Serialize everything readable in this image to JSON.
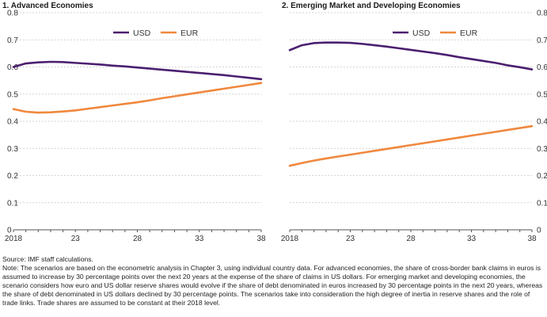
{
  "chart_data": [
    {
      "type": "line",
      "title": "1. Advanced Economies",
      "x": [
        2018,
        2019,
        2020,
        2021,
        2022,
        2023,
        2024,
        2025,
        2026,
        2027,
        2028,
        2029,
        2030,
        2031,
        2032,
        2033,
        2034,
        2035,
        2036,
        2037,
        2038
      ],
      "x_tick_labels": [
        "2018",
        "23",
        "28",
        "33",
        "38"
      ],
      "x_tick_values": [
        2018,
        2023,
        2028,
        2033,
        2038
      ],
      "xlim": [
        2018,
        2038
      ],
      "ylim": [
        0,
        0.8
      ],
      "y_ticks": [
        0,
        0.1,
        0.2,
        0.3,
        0.4,
        0.5,
        0.6,
        0.7,
        0.8
      ],
      "y_tick_labels": [
        "0",
        "0.1",
        "0.2",
        "0.3",
        "0.4",
        "0.5",
        "0.6",
        "0.7",
        "0.8"
      ],
      "y_axis_side": "left",
      "legend_position": "top-center",
      "series": [
        {
          "name": "USD",
          "color": "#4b1f6f",
          "values": [
            0.6,
            0.613,
            0.617,
            0.619,
            0.618,
            0.615,
            0.612,
            0.609,
            0.605,
            0.602,
            0.598,
            0.594,
            0.59,
            0.586,
            0.582,
            0.578,
            0.574,
            0.57,
            0.565,
            0.56,
            0.555
          ]
        },
        {
          "name": "EUR",
          "color": "#f0883e",
          "values": [
            0.445,
            0.435,
            0.432,
            0.433,
            0.436,
            0.44,
            0.446,
            0.452,
            0.458,
            0.464,
            0.47,
            0.477,
            0.485,
            0.492,
            0.499,
            0.506,
            0.513,
            0.52,
            0.527,
            0.534,
            0.541
          ]
        }
      ]
    },
    {
      "type": "line",
      "title": "2. Emerging Market and Developing Economies",
      "x": [
        2018,
        2019,
        2020,
        2021,
        2022,
        2023,
        2024,
        2025,
        2026,
        2027,
        2028,
        2029,
        2030,
        2031,
        2032,
        2033,
        2034,
        2035,
        2036,
        2037,
        2038
      ],
      "x_tick_labels": [
        "2018",
        "23",
        "28",
        "33",
        "38"
      ],
      "x_tick_values": [
        2018,
        2023,
        2028,
        2033,
        2038
      ],
      "xlim": [
        2018,
        2038
      ],
      "ylim": [
        0,
        0.8
      ],
      "y_ticks": [
        0,
        0.1,
        0.2,
        0.3,
        0.4,
        0.5,
        0.6,
        0.7,
        0.8
      ],
      "y_tick_labels": [
        "0",
        "0.1",
        "0.2",
        "0.3",
        "0.4",
        "0.5",
        "0.6",
        "0.7",
        "0.8"
      ],
      "y_axis_side": "right",
      "legend_position": "top-center",
      "series": [
        {
          "name": "USD",
          "color": "#4b1f6f",
          "values": [
            0.662,
            0.68,
            0.688,
            0.69,
            0.69,
            0.689,
            0.685,
            0.68,
            0.675,
            0.669,
            0.663,
            0.657,
            0.651,
            0.644,
            0.636,
            0.629,
            0.622,
            0.615,
            0.606,
            0.599,
            0.591
          ]
        },
        {
          "name": "EUR",
          "color": "#f0883e",
          "values": [
            0.236,
            0.246,
            0.255,
            0.263,
            0.27,
            0.277,
            0.284,
            0.291,
            0.298,
            0.305,
            0.312,
            0.319,
            0.326,
            0.333,
            0.34,
            0.347,
            0.354,
            0.361,
            0.368,
            0.375,
            0.382
          ]
        }
      ]
    }
  ],
  "notes": {
    "source": "Source: IMF staff calculations.",
    "note": "Note: The scenarios are based on the econometric analysis in Chapter 3, using individual country data. For advanced economies, the share of cross-border bank claims in euros is assumed to increase by 30 percentage points over the next 20 years at the expense of the share of claims in US dollars. For emerging market and developing economies, the scenario considers how euro and US dollar reserve shares would evolve if the share of debt denominated in euros increased by 30 percentage points in the next 20 years, whereas the share of debt denominated in US dollars declined by 30 percentage points. The scenarios take into consideration the high degree of inertia in reserve shares and the role of trade links. Trade shares are assumed to be constant at their 2018 level."
  }
}
